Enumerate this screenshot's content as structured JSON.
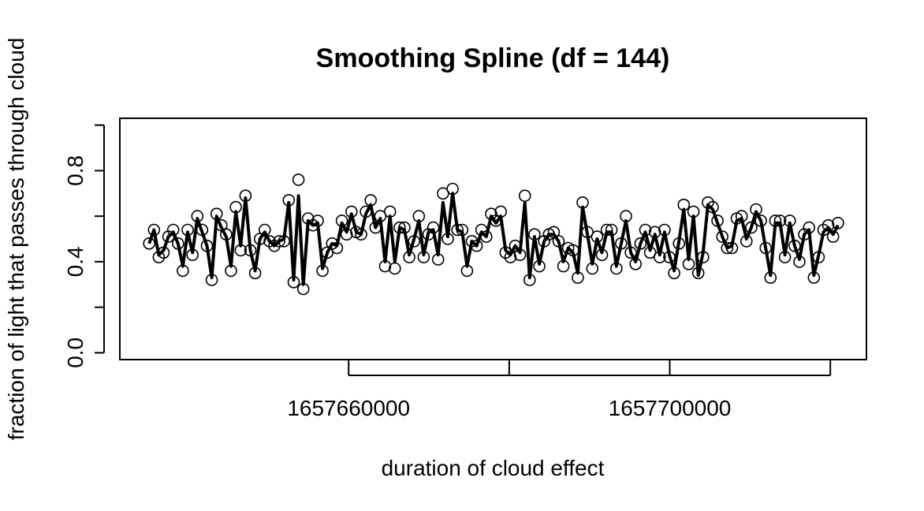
{
  "chart_data": {
    "type": "line",
    "title": "Smoothing Spline (df = 144)",
    "xlabel": "duration of cloud effect",
    "ylabel": "fraction of light that passes through cloud",
    "xlim": [
      1657631500,
      1657724500
    ],
    "ylim": [
      -0.03,
      1.03
    ],
    "x_ticks": [
      1657660000,
      1657680000,
      1657700000,
      1657720000
    ],
    "x_tick_labels": [
      "1657660000",
      "",
      "1657700000",
      ""
    ],
    "y_ticks": [
      0.0,
      0.2,
      0.4,
      0.6,
      0.8,
      1.0
    ],
    "y_tick_labels": [
      "0.0",
      "",
      "0.4",
      "",
      "0.8",
      ""
    ],
    "x_start": 1657635150,
    "x_step": 600,
    "series": [
      {
        "style": "points",
        "values": [
          0.48,
          0.54,
          0.42,
          0.44,
          0.51,
          0.54,
          0.48,
          0.36,
          0.54,
          0.43,
          0.6,
          0.54,
          0.47,
          0.32,
          0.61,
          0.56,
          0.52,
          0.36,
          0.64,
          0.45,
          0.69,
          0.45,
          0.35,
          0.5,
          0.54,
          0.49,
          0.47,
          0.49,
          0.49,
          0.67,
          0.31,
          0.76,
          0.28,
          0.59,
          0.56,
          0.58,
          0.36,
          0.44,
          0.48,
          0.46,
          0.58,
          0.52,
          0.62,
          0.53,
          0.52,
          0.62,
          0.67,
          0.55,
          0.6,
          0.38,
          0.62,
          0.37,
          0.55,
          0.55,
          0.42,
          0.49,
          0.6,
          0.42,
          0.52,
          0.55,
          0.41,
          0.7,
          0.5,
          0.72,
          0.54,
          0.54,
          0.36,
          0.49,
          0.47,
          0.54,
          0.51,
          0.61,
          0.58,
          0.62,
          0.44,
          0.42,
          0.47,
          0.43,
          0.69,
          0.32,
          0.52,
          0.38,
          0.49,
          0.52,
          0.53,
          0.49,
          0.38,
          0.46,
          0.45,
          0.33,
          0.66,
          0.53,
          0.37,
          0.51,
          0.43,
          0.54,
          0.54,
          0.37,
          0.48,
          0.6,
          0.44,
          0.39,
          0.48,
          0.54,
          0.44,
          0.53,
          0.42,
          0.54,
          0.42,
          0.35,
          0.48,
          0.65,
          0.39,
          0.62,
          0.35,
          0.42,
          0.66,
          0.64,
          0.58,
          0.51,
          0.46,
          0.46,
          0.59,
          0.6,
          0.49,
          0.55,
          0.63,
          0.58,
          0.46,
          0.33,
          0.58,
          0.58,
          0.42,
          0.58,
          0.47,
          0.4,
          0.52,
          0.55,
          0.33,
          0.42,
          0.54,
          0.56,
          0.51,
          0.57
        ]
      },
      {
        "style": "line",
        "values": [
          0.48,
          0.54,
          0.43,
          0.45,
          0.51,
          0.53,
          0.48,
          0.38,
          0.53,
          0.44,
          0.59,
          0.53,
          0.47,
          0.33,
          0.6,
          0.55,
          0.51,
          0.38,
          0.62,
          0.47,
          0.68,
          0.45,
          0.36,
          0.5,
          0.53,
          0.49,
          0.47,
          0.49,
          0.5,
          0.66,
          0.32,
          0.69,
          0.3,
          0.58,
          0.56,
          0.57,
          0.37,
          0.44,
          0.48,
          0.47,
          0.57,
          0.53,
          0.61,
          0.53,
          0.52,
          0.61,
          0.65,
          0.55,
          0.59,
          0.4,
          0.6,
          0.4,
          0.55,
          0.54,
          0.43,
          0.5,
          0.58,
          0.43,
          0.53,
          0.54,
          0.43,
          0.66,
          0.51,
          0.7,
          0.54,
          0.53,
          0.38,
          0.49,
          0.47,
          0.53,
          0.51,
          0.6,
          0.57,
          0.6,
          0.45,
          0.43,
          0.47,
          0.44,
          0.66,
          0.33,
          0.51,
          0.39,
          0.49,
          0.52,
          0.52,
          0.49,
          0.4,
          0.46,
          0.44,
          0.35,
          0.64,
          0.52,
          0.39,
          0.5,
          0.44,
          0.53,
          0.53,
          0.38,
          0.48,
          0.58,
          0.44,
          0.4,
          0.48,
          0.53,
          0.45,
          0.52,
          0.43,
          0.53,
          0.43,
          0.36,
          0.49,
          0.63,
          0.41,
          0.6,
          0.34,
          0.44,
          0.65,
          0.63,
          0.57,
          0.51,
          0.46,
          0.47,
          0.58,
          0.59,
          0.5,
          0.55,
          0.62,
          0.58,
          0.46,
          0.34,
          0.57,
          0.57,
          0.43,
          0.57,
          0.47,
          0.41,
          0.52,
          0.54,
          0.34,
          0.43,
          0.53,
          0.55,
          0.52,
          0.56
        ]
      }
    ],
    "grid": false,
    "legend": "none",
    "line_color": "#000000",
    "point_color": "#000000"
  }
}
